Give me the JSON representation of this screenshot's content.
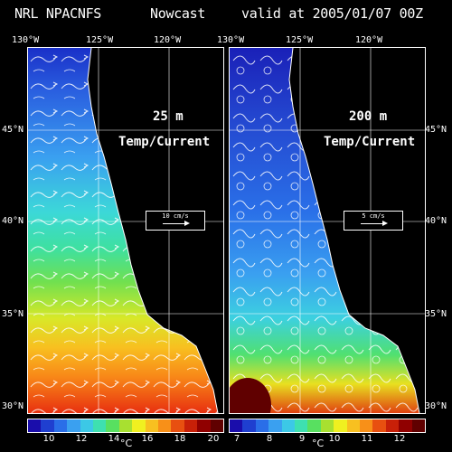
{
  "header": {
    "model": "NRL NPACNFS",
    "type": "Nowcast",
    "valid": "valid at 2005/01/07 00Z"
  },
  "longitude_labels": [
    "130°W",
    "125°W",
    "120°W"
  ],
  "latitude_labels": [
    "45°N",
    "40°N",
    "35°N",
    "30°N"
  ],
  "panels": [
    {
      "depth": "25 m",
      "variable": "Temp/Current",
      "reference_vector": "10 cm/s",
      "colorbar_ticks": [
        "10",
        "12",
        "14",
        "16",
        "18",
        "20"
      ],
      "unit": "°C"
    },
    {
      "depth": "200 m",
      "variable": "Temp/Current",
      "reference_vector": "5 cm/s",
      "colorbar_ticks": [
        "7",
        "8",
        "9",
        "10",
        "11",
        "12"
      ],
      "unit": "°C"
    }
  ],
  "colors": {
    "background": "#000000",
    "land": "#000000",
    "outline": "#ffffff",
    "palette": [
      "#1a0dab",
      "#1f3fd0",
      "#2a6ee8",
      "#3aa0f0",
      "#3cc8e6",
      "#3ee0b0",
      "#58e060",
      "#a8e030",
      "#f0f020",
      "#f8c020",
      "#f89018",
      "#e85010",
      "#c82008",
      "#900000",
      "#600000"
    ]
  }
}
